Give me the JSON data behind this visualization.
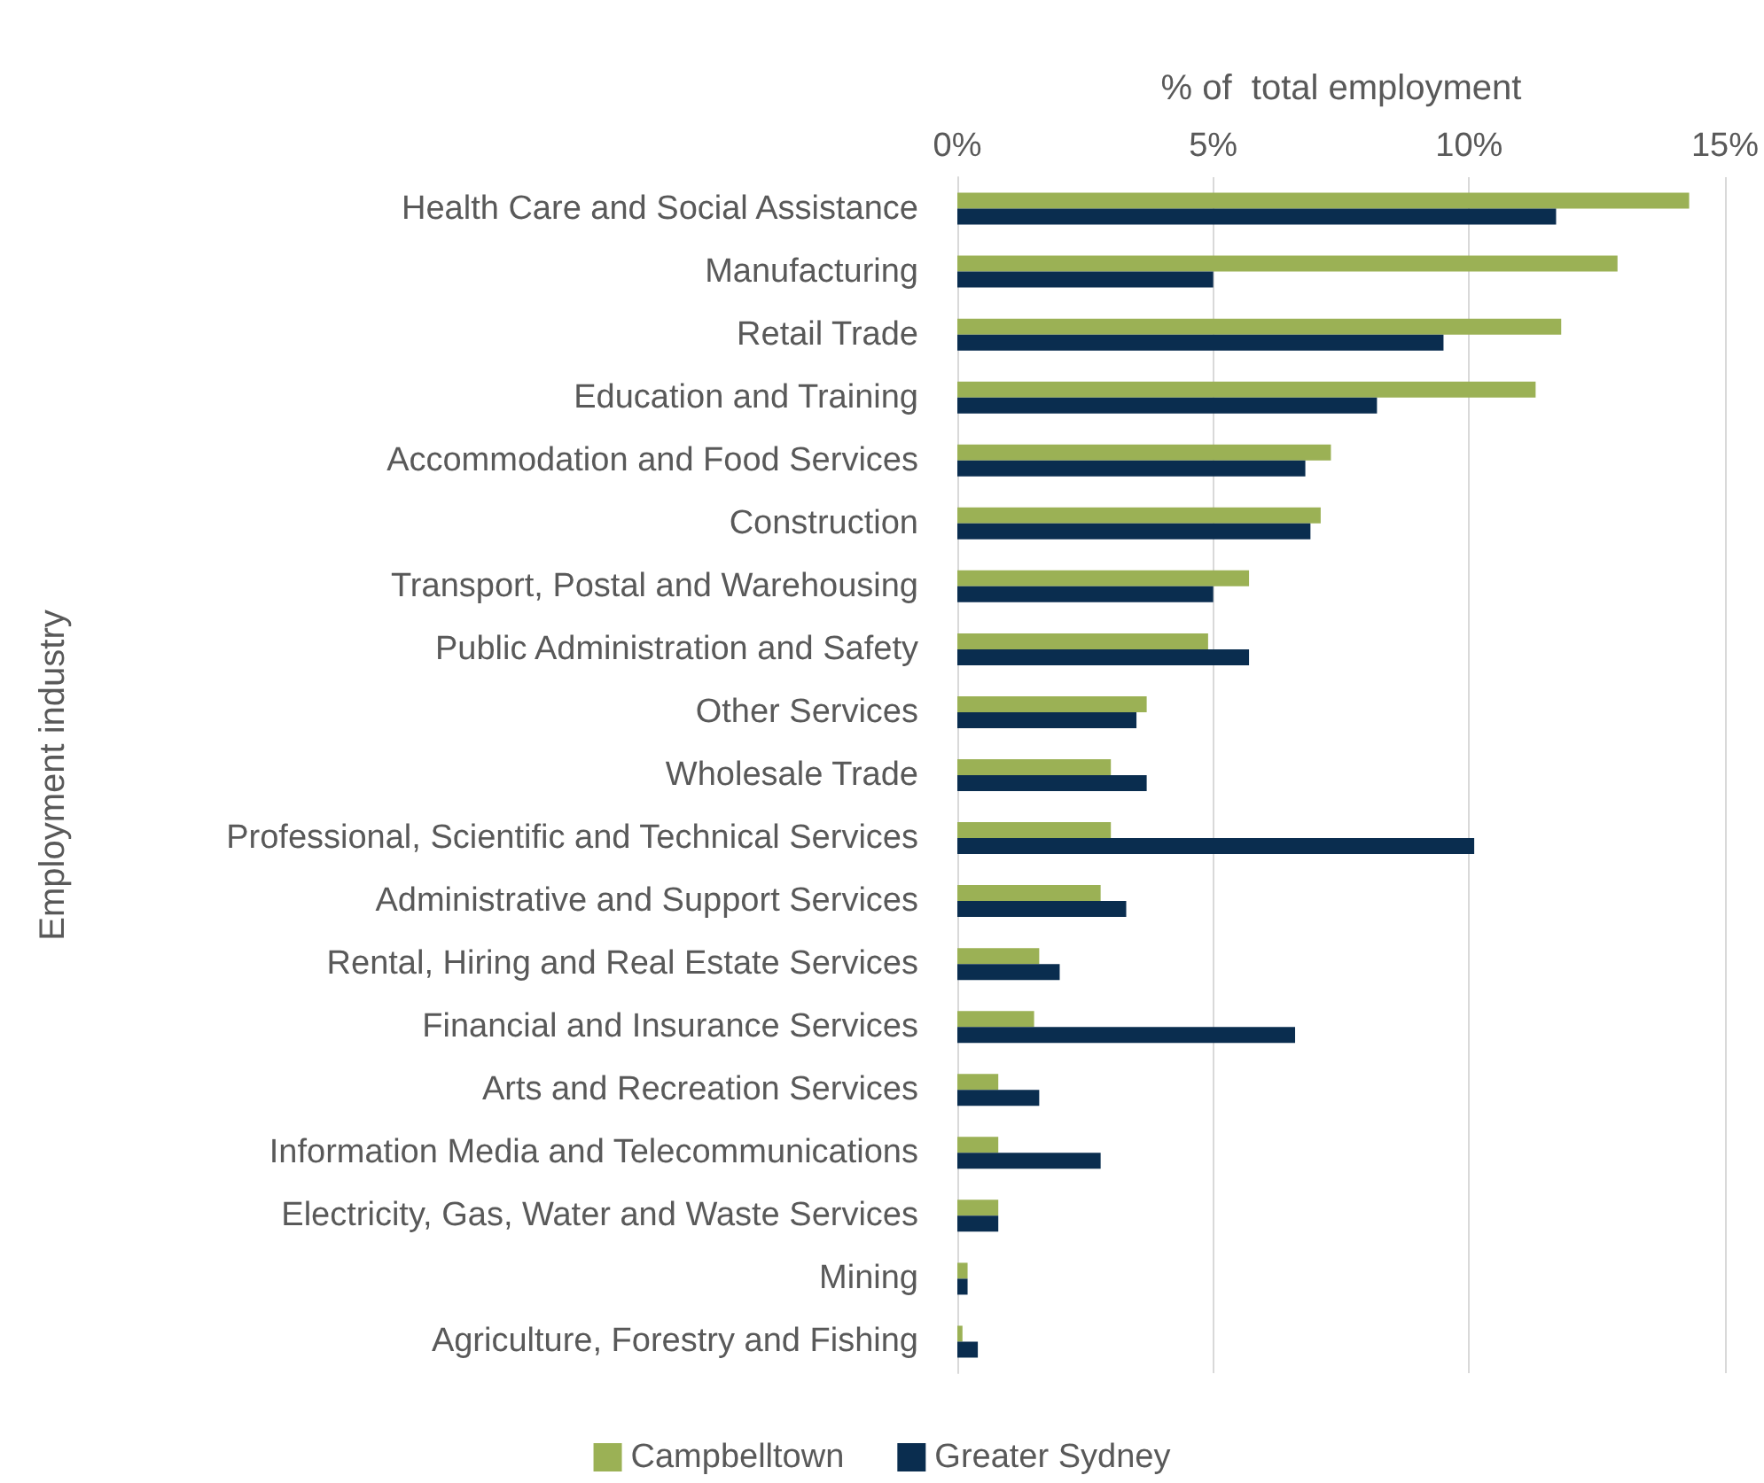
{
  "chart_data": {
    "type": "bar",
    "orientation": "horizontal",
    "xlabel": "% of  total employment",
    "ylabel": "Employment industry",
    "categories": [
      "Health Care and Social Assistance",
      "Manufacturing",
      "Retail Trade",
      "Education and Training",
      "Accommodation and Food Services",
      "Construction",
      "Transport, Postal and Warehousing",
      "Public Administration and Safety",
      "Other Services",
      "Wholesale Trade",
      "Professional, Scientific and Technical Services",
      "Administrative and Support Services",
      "Rental, Hiring and Real Estate Services",
      "Financial and Insurance Services",
      "Arts and Recreation Services",
      "Information Media and Telecommunications",
      "Electricity, Gas, Water and Waste Services",
      "Mining",
      "Agriculture, Forestry and Fishing"
    ],
    "series": [
      {
        "name": "Campbelltown",
        "color": "#9bb155",
        "values": [
          14.3,
          12.9,
          11.8,
          11.3,
          7.3,
          7.1,
          5.7,
          4.9,
          3.7,
          3.0,
          3.0,
          2.8,
          1.6,
          1.5,
          0.8,
          0.8,
          0.8,
          0.2,
          0.1
        ]
      },
      {
        "name": "Greater Sydney",
        "color": "#0a2d4f",
        "values": [
          11.7,
          5.0,
          9.5,
          8.2,
          6.8,
          6.9,
          5.0,
          5.7,
          3.5,
          3.7,
          10.1,
          3.3,
          2.0,
          6.6,
          1.6,
          2.8,
          0.8,
          0.2,
          0.4
        ]
      }
    ],
    "xlim": [
      0,
      15
    ],
    "xticks": [
      {
        "value": 0,
        "label": "0%"
      },
      {
        "value": 5,
        "label": "5%"
      },
      {
        "value": 10,
        "label": "10%"
      },
      {
        "value": 15,
        "label": "15%"
      }
    ],
    "grid": "x",
    "legend": "bottom"
  }
}
